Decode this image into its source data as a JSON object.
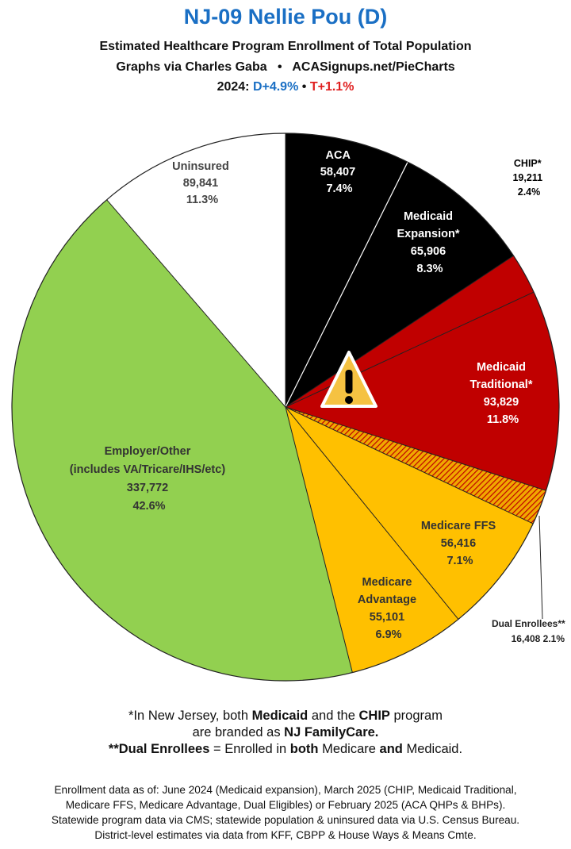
{
  "header": {
    "title": "NJ-09 Nellie Pou (D)",
    "subtitle1": "Estimated Healthcare Program Enrollment of Total Population",
    "subtitle2_left": "Graphs via Charles Gaba",
    "subtitle2_sep": "•",
    "subtitle2_right": "ACASignups.net/PieCharts",
    "year_prefix": "2024:",
    "dem_margin": "D+4.9%",
    "sep": "•",
    "rep_margin": "T+1.1%"
  },
  "chart_data": {
    "type": "pie",
    "start": "12 o'clock",
    "direction": "clockwise",
    "slices": [
      {
        "label": "ACA",
        "value": 58407,
        "value_text": "58,407",
        "percent": "7.4%",
        "color": "#000000",
        "label_color": "#ffffff"
      },
      {
        "label": "Medicaid Expansion*",
        "value": 65906,
        "value_text": "65,906",
        "percent": "8.3%",
        "color": "#000000",
        "label_color": "#ffffff"
      },
      {
        "label": "CHIP*",
        "value": 19211,
        "value_text": "19,211",
        "percent": "2.4%",
        "color": "#c00000",
        "label_color": "#000000"
      },
      {
        "label": "Medicaid Traditional*",
        "value": 93829,
        "value_text": "93,829",
        "percent": "11.8%",
        "color": "#c00000",
        "label_color": "#ffffff"
      },
      {
        "label": "Dual Enrollees**",
        "value": 16408,
        "value_text": "16,408",
        "percent": "2.1%",
        "color": "#f0a800",
        "label_color": "#000000",
        "pattern": "hatched"
      },
      {
        "label": "Medicare FFS",
        "value": 56416,
        "value_text": "56,416",
        "percent": "7.1%",
        "color": "#ffc000",
        "label_color": "#333333"
      },
      {
        "label": "Medicare Advantage",
        "value": 55101,
        "value_text": "55,101",
        "percent": "6.9%",
        "color": "#ffc000",
        "label_color": "#333333"
      },
      {
        "label": "Employer/Other (includes VA/Tricare/IHS/etc)",
        "value": 337772,
        "value_text": "337,772",
        "percent": "42.6%",
        "color": "#92d050",
        "label_color": "#333333"
      },
      {
        "label": "Uninsured",
        "value": 89841,
        "value_text": "89,841",
        "percent": "11.3%",
        "color": "#ffffff",
        "label_color": "#444444"
      }
    ],
    "labels": {
      "aca": [
        "ACA",
        "58,407",
        "7.4%"
      ],
      "medicaid_expansion": [
        "Medicaid",
        "Expansion*",
        "65,906",
        "8.3%"
      ],
      "chip": [
        "CHIP*",
        "19,211",
        "2.4%"
      ],
      "medicaid_traditional": [
        "Medicaid",
        "Traditional*",
        "93,829",
        "11.8%"
      ],
      "dual": [
        "Dual Enrollees**",
        "16,408 2.1%"
      ],
      "medicare_ffs": [
        "Medicare FFS",
        "56,416",
        "7.1%"
      ],
      "medicare_advantage": [
        "Medicare",
        "Advantage",
        "55,101",
        "6.9%"
      ],
      "employer": [
        "Employer/Other",
        "(includes VA/Tricare/IHS/etc)",
        "337,772",
        "42.6%"
      ],
      "uninsured": [
        "Uninsured",
        "89,841",
        "11.3%"
      ]
    },
    "warning_icon": "warning-triangle-icon"
  },
  "notes": {
    "line1_a": "*In New Jersey, both ",
    "line1_b": "Medicaid",
    "line1_c": " and the ",
    "line1_d": "CHIP",
    "line1_e": " program",
    "line2_a": "are branded as ",
    "line2_b": "NJ FamilyCare.",
    "line3_a": "**Dual Enrollees",
    "line3_b": " = Enrolled in ",
    "line3_c": "both",
    "line3_d": " Medicare ",
    "line3_e": "and",
    "line3_f": " Medicaid."
  },
  "footer": {
    "line1": "Enrollment data as of: June 2024 (Medicaid expansion), March 2025 (CHIP, Medicaid Traditional,",
    "line2": "Medicare FFS, Medicare Advantage, Dual Eligibles) or February 2025 (ACA QHPs & BHPs).",
    "line3": "Statewide program data via CMS; statewide population & uninsured data via U.S. Census Bureau.",
    "line4": "District-level estimates via data from KFF, CBPP & House Ways & Means Cmte."
  }
}
